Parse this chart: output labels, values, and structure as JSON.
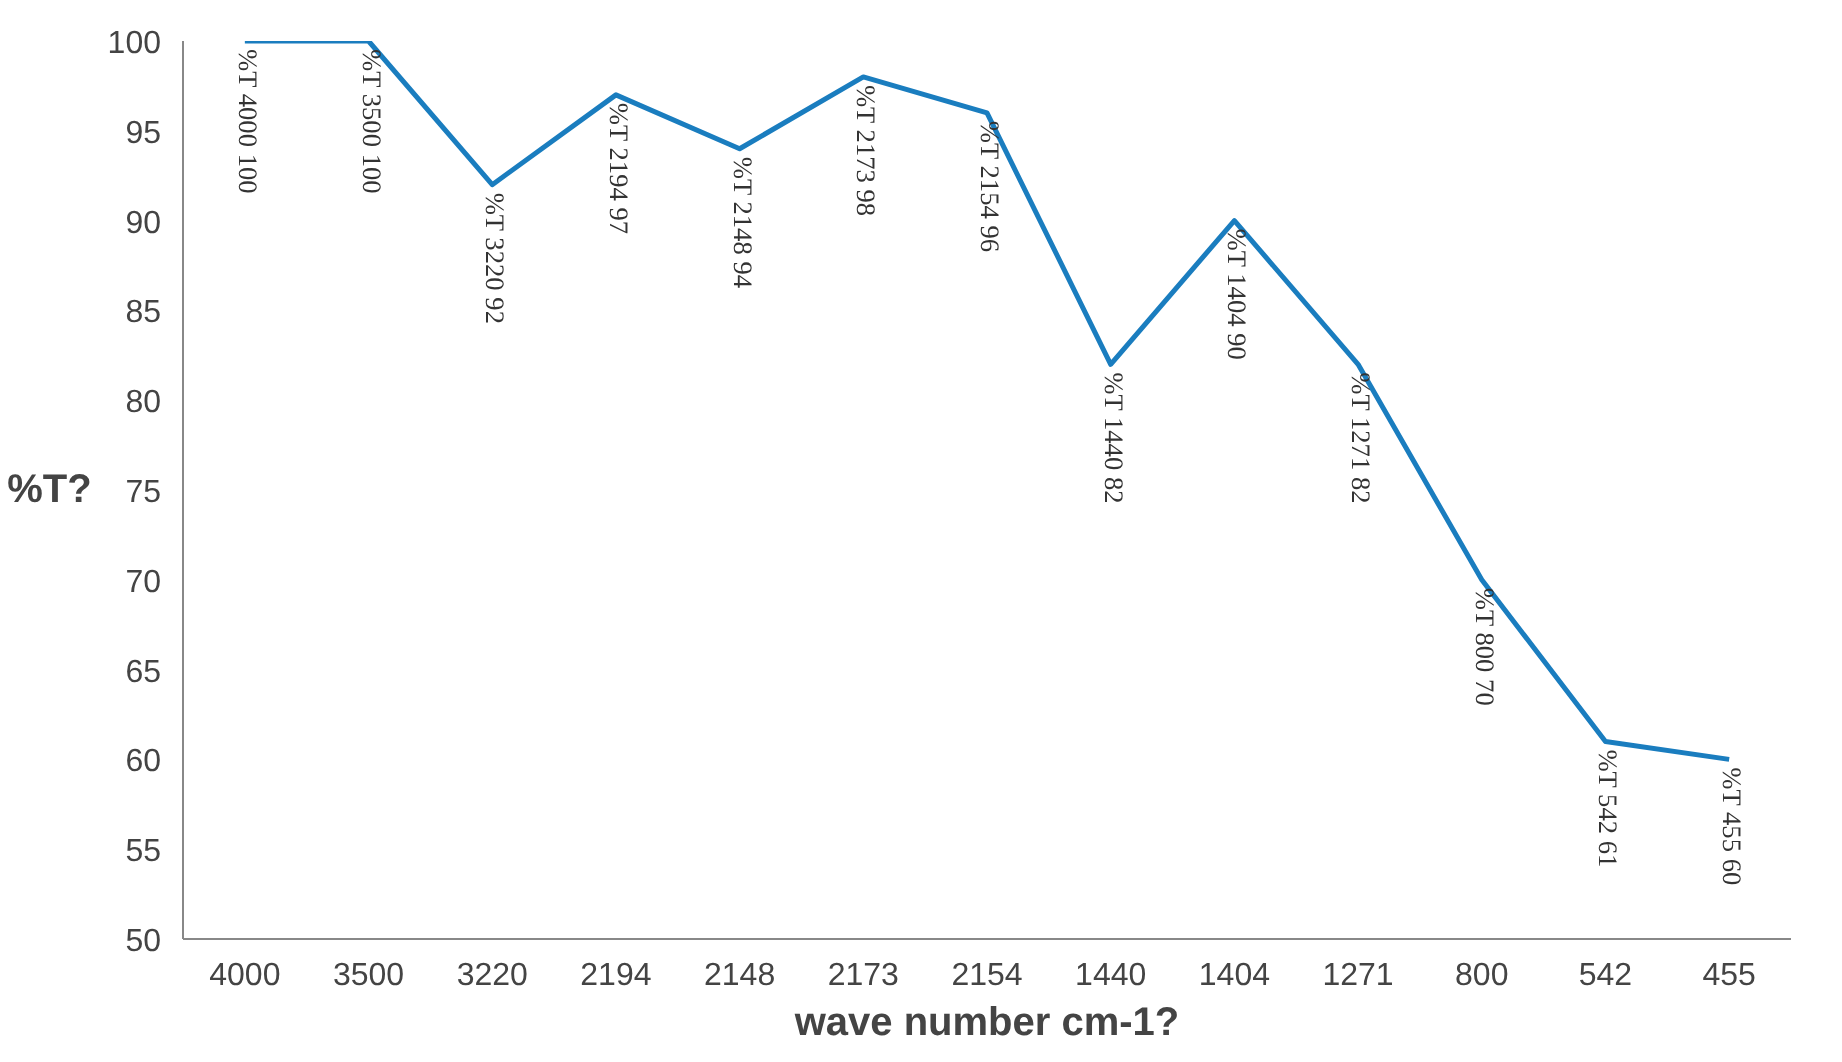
{
  "chart_data": {
    "type": "line",
    "xlabel": "wave number cm-1?",
    "ylabel": "%T?",
    "categories": [
      "4000",
      "3500",
      "3220",
      "2194",
      "2148",
      "2173",
      "2154",
      "1440",
      "1404",
      "1271",
      "800",
      "542",
      "455"
    ],
    "series": [
      {
        "color": "#1a7dbf",
        "values": [
          100,
          100,
          92,
          97,
          94,
          98,
          96,
          82,
          90,
          82,
          70,
          61,
          60
        ],
        "value_labels": [
          "%T 4000 100",
          "%T 3500 100",
          "%T 3220 92",
          "%T 2194 97",
          "%T 2148 94",
          "%T 2173 98",
          "%T 2154 96",
          "%T 1440 82",
          "%T 1404 90",
          "%T 1271 82",
          "%T 800 70",
          "%T 542 61",
          "%T 455 60"
        ]
      }
    ],
    "ylim": [
      50,
      100
    ],
    "yticks": [
      50,
      55,
      60,
      65,
      70,
      75,
      80,
      85,
      90,
      95,
      100
    ],
    "grid": false,
    "marker": "none",
    "line_style": "solid"
  }
}
